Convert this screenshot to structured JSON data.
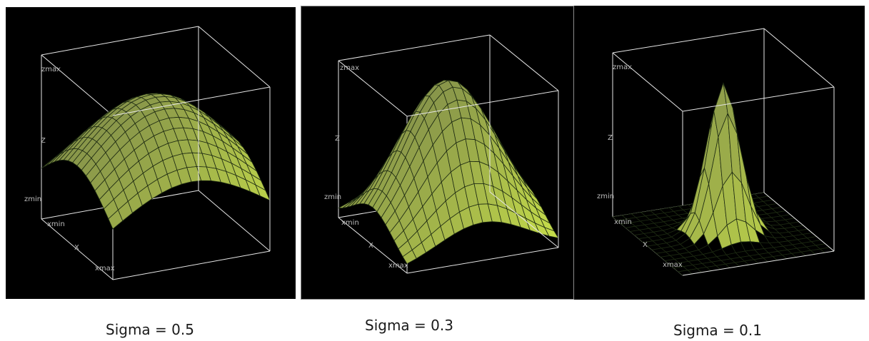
{
  "panels": [
    {
      "caption": "Sigma = 0.5",
      "sigma": 0.5,
      "labels": {
        "zmax": "zmax",
        "z": "Z",
        "zmin": "zmin",
        "xmin": "xmin",
        "x": "X",
        "xmax": "xmax"
      }
    },
    {
      "caption": "Sigma = 0.3",
      "sigma": 0.3,
      "labels": {
        "zmax": "zmax",
        "z": "Z",
        "zmin": "zmin",
        "xmin": "xmin",
        "x": "X",
        "xmax": "xmax"
      }
    },
    {
      "caption": "Sigma = 0.1",
      "sigma": 0.1,
      "labels": {
        "zmax": "zmax",
        "z": "Z",
        "zmin": "zmin",
        "xmin": "xmin",
        "x": "X",
        "xmax": "xmax"
      }
    }
  ],
  "colors": {
    "background": "#000000",
    "box_lines": "#e6e6e6",
    "mesh_lines": "#1d2a12",
    "surface_high": "#7e8a4a",
    "surface_low": "#c8e04a",
    "floor_left": "#4a4ab8",
    "floor_right": "#c83c78"
  }
}
